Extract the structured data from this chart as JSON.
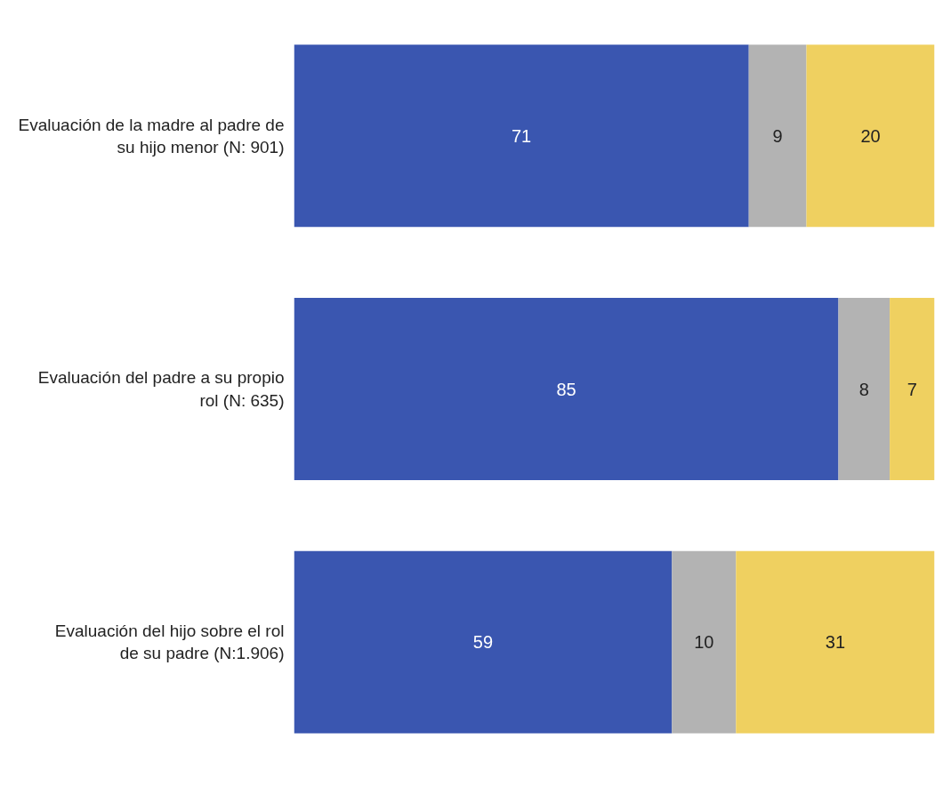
{
  "chart_data": {
    "type": "bar",
    "orientation": "horizontal",
    "stacked": true,
    "data_labels": true,
    "grid": false,
    "tick_labels": "y",
    "xlim": [
      0,
      100
    ],
    "categories": [
      "Evaluación de la madre al padre de su hijo menor (N: 901)",
      "Evaluación del padre a su propio rol (N: 635)",
      "Evaluación del hijo sobre el rol de su padre (N:1.906)"
    ],
    "series": [
      {
        "color": "#3a56b0",
        "values": [
          71,
          85,
          59
        ]
      },
      {
        "color": "#b3b3b3",
        "values": [
          9,
          8,
          10
        ]
      },
      {
        "color": "#efd060",
        "values": [
          20,
          7,
          31
        ]
      }
    ]
  }
}
